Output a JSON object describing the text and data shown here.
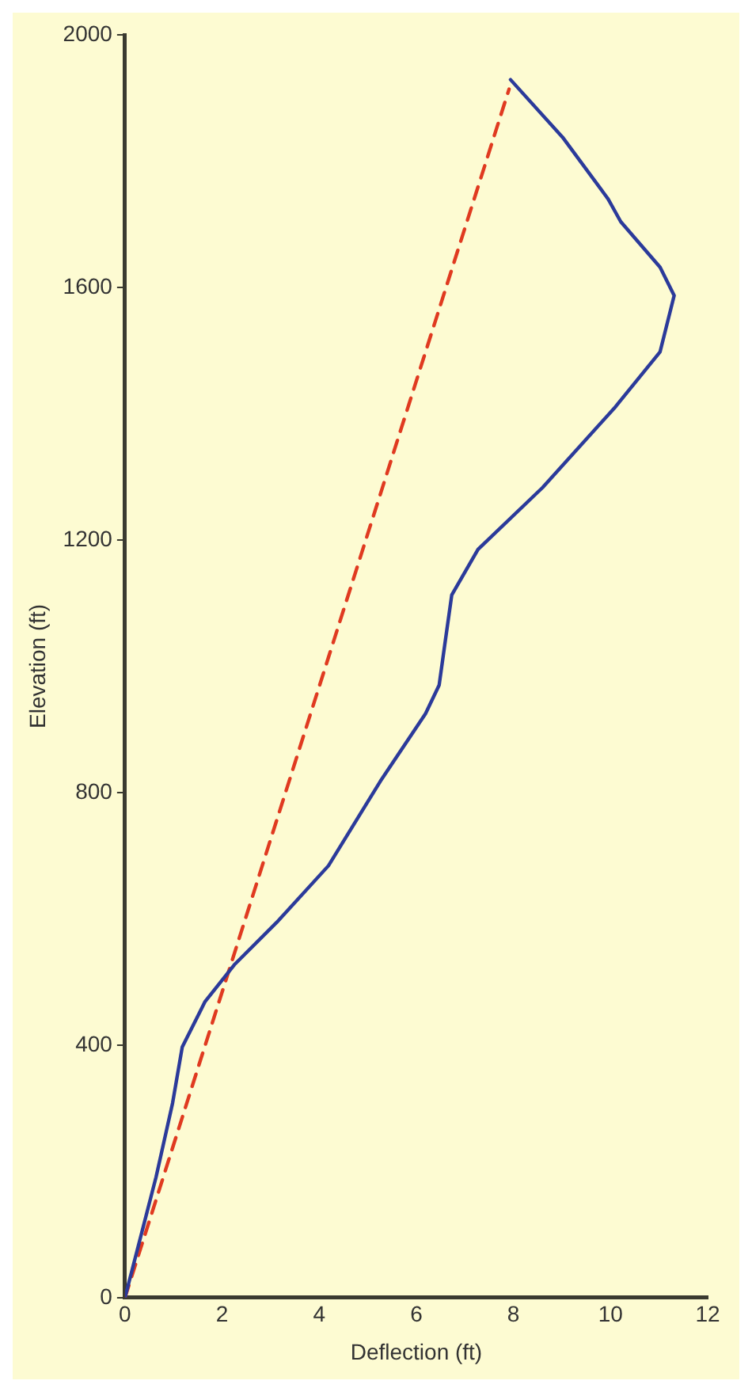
{
  "chart_data": {
    "type": "line",
    "xlabel": "Deflection (ft)",
    "ylabel": "Elevation (ft)",
    "xlim": [
      0,
      12
    ],
    "xticks": [
      0,
      2,
      4,
      6,
      8,
      10,
      12
    ],
    "ylim": [
      0,
      2000
    ],
    "yticks": [
      0,
      400,
      800,
      1200,
      1600,
      2000
    ],
    "grid": false,
    "legend": false,
    "marker": "none",
    "series": [
      {
        "color": "#2b3a9a",
        "line_style": "solid",
        "x": [
          0,
          0.64,
          0.98,
          1.18,
          1.65,
          2.25,
          3.12,
          4.19,
          5.26,
          6.19,
          6.47,
          6.6,
          6.73,
          7.27,
          8.6,
          10.08,
          11.02,
          11.31,
          11.02,
          10.21,
          9.95,
          9.01,
          7.94
        ],
        "values": [
          0,
          191,
          308,
          397,
          469,
          527,
          594,
          684,
          818,
          925,
          970,
          1042,
          1113,
          1185,
          1283,
          1409,
          1498,
          1587,
          1632,
          1704,
          1740,
          1838,
          1929
        ]
      },
      {
        "color": "#e03a20",
        "line_style": "dashed",
        "x": [
          0,
          7.91
        ],
        "values": [
          0,
          1914
        ]
      }
    ]
  }
}
